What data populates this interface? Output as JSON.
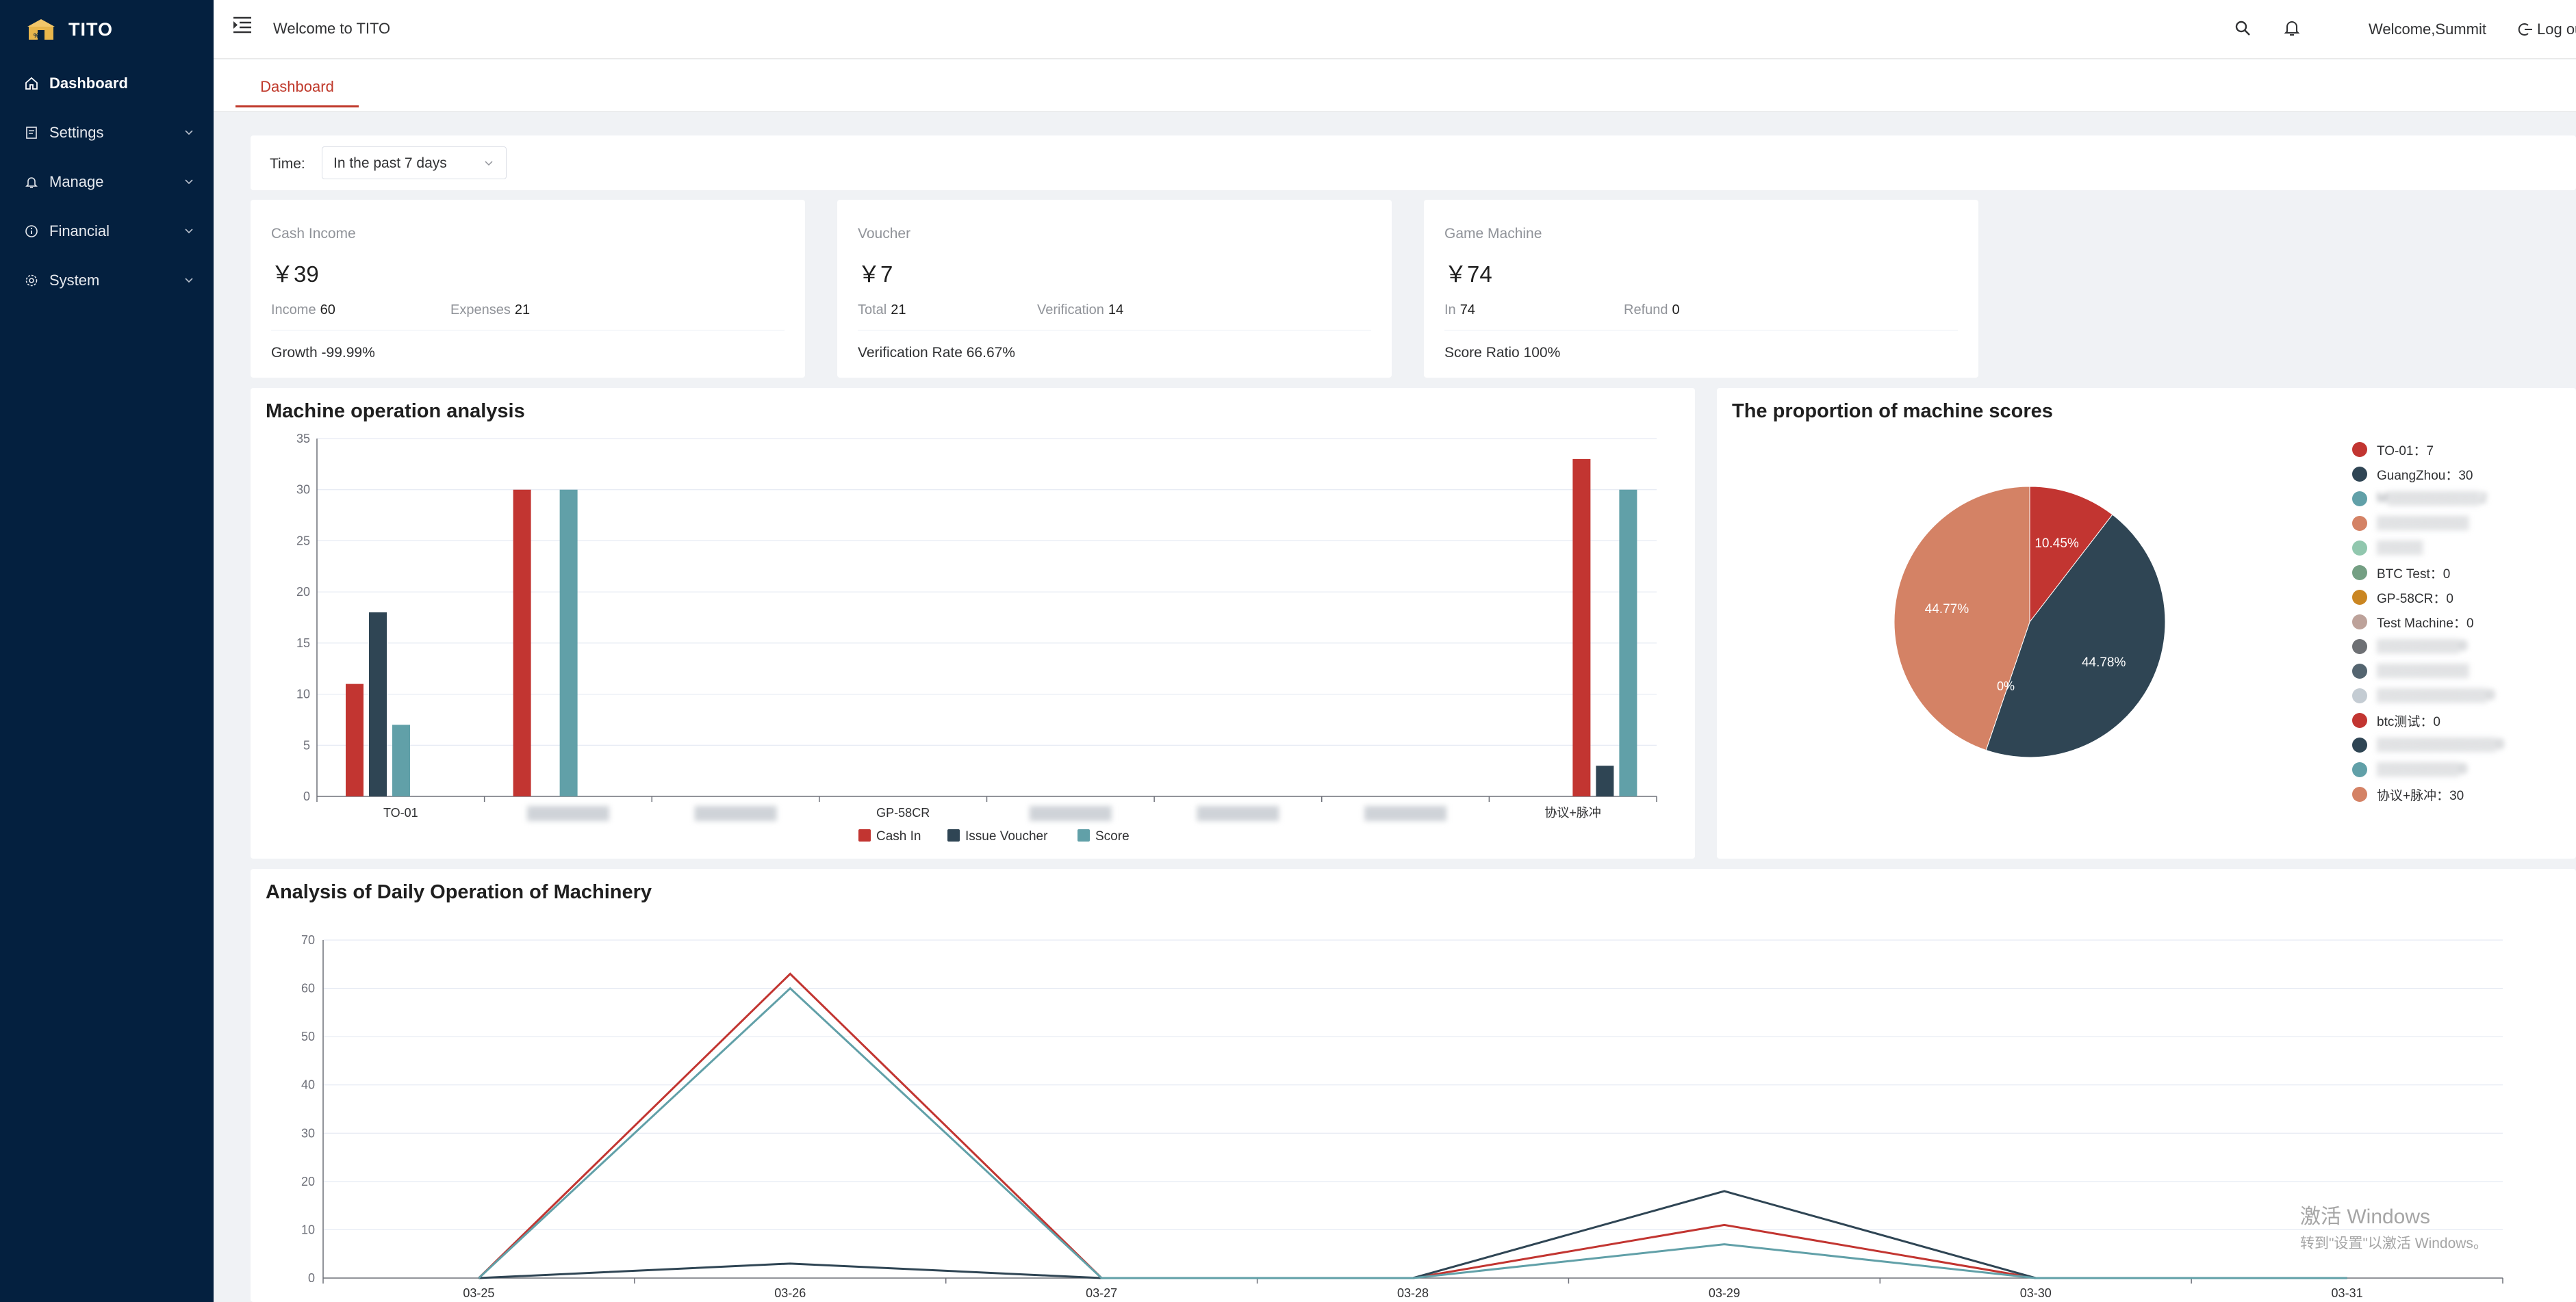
{
  "app": {
    "title": "TITO"
  },
  "colors": {
    "sidebar_bg": "#04203f",
    "accent": "#c0392b",
    "cash_in": "#c23531",
    "issue_voucher": "#2f4554",
    "score": "#61a0a8"
  },
  "sidebar": {
    "items": [
      {
        "label": "Dashboard",
        "icon": "home-icon",
        "active": true
      },
      {
        "label": "Settings",
        "icon": "settings-doc-icon",
        "expandable": true
      },
      {
        "label": "Manage",
        "icon": "bell-icon",
        "expandable": true
      },
      {
        "label": "Financial",
        "icon": "info-circle-icon",
        "expandable": true
      },
      {
        "label": "System",
        "icon": "gear-icon",
        "expandable": true
      }
    ]
  },
  "header": {
    "title": "Welcome to TITO",
    "user": "Welcome,Summit",
    "logout": "Log ou"
  },
  "tabs": [
    {
      "label": "Dashboard",
      "active": true
    }
  ],
  "filter": {
    "label": "Time:",
    "value": "In the past 7 days"
  },
  "cards": [
    {
      "title": "Cash Income",
      "amount": "￥39",
      "left_label": "Income",
      "left_value": "60",
      "right_label": "Expenses",
      "right_value": "21",
      "footer": "Growth -99.99%"
    },
    {
      "title": "Voucher",
      "amount": "￥7",
      "left_label": "Total",
      "left_value": "21",
      "right_label": "Verification",
      "right_value": "14",
      "footer": "Verification Rate 66.67%"
    },
    {
      "title": "Game Machine",
      "amount": "￥74",
      "left_label": "In",
      "left_value": "74",
      "right_label": "Refund",
      "right_value": "0",
      "footer": "Score Ratio 100%"
    }
  ],
  "panels": {
    "machine_operation": "Machine operation analysis",
    "machine_scores": "The proportion of machine scores",
    "daily_operation": "Analysis of Daily Operation of Machinery"
  },
  "chart_data": [
    {
      "type": "bar",
      "title": "Machine operation analysis",
      "categories": [
        "TO-01",
        "",
        "",
        "GP-58CR",
        "",
        "",
        "",
        "协议+脉冲"
      ],
      "ylim": [
        0,
        35
      ],
      "yticks": [
        0,
        5,
        10,
        15,
        20,
        25,
        30,
        35
      ],
      "series": [
        {
          "name": "Cash In",
          "values": [
            11,
            30,
            0,
            0,
            0,
            0,
            0,
            33
          ]
        },
        {
          "name": "Issue Voucher",
          "values": [
            18,
            0,
            0,
            0,
            0,
            0,
            0,
            3
          ]
        },
        {
          "name": "Score",
          "values": [
            7,
            30,
            0,
            0,
            0,
            0,
            0,
            30
          ]
        }
      ],
      "legend": "bottom-center",
      "grid": true
    },
    {
      "type": "pie",
      "title": "The proportion of machine scores",
      "slices": [
        {
          "name": "TO-01",
          "value": 7,
          "label": "10.45%",
          "color": "#c23531"
        },
        {
          "name": "GuangZhou",
          "value": 30,
          "label": "44.78%",
          "color": "#2f4554"
        },
        {
          "name": "协议+脉冲",
          "value": 30,
          "label": "44.77%",
          "color": "#d48265"
        }
      ],
      "zero_label": "0%",
      "legend": "right",
      "legend_items": [
        {
          "text": "TO-01：7",
          "color": "#c23531"
        },
        {
          "text": "GuangZhou：30",
          "color": "#2f4554"
        },
        {
          "text": "M▒▒▒▒▒▒▒▒▒▒2",
          "color": "#61a0a8",
          "obscured": true
        },
        {
          "text": "▒▒▒▒▒▒▒▒▒▒",
          "color": "#d48265",
          "obscured": true
        },
        {
          "text": "▒▒▒▒▒",
          "color": "#91c7ae",
          "obscured": true
        },
        {
          "text": "BTC Test：0",
          "color": "#749f83"
        },
        {
          "text": "GP-58CR：0",
          "color": "#ca8622"
        },
        {
          "text": "Test Machine：0",
          "color": "#bda29a"
        },
        {
          "text": "▒▒▒▒▒▒▒▒▒0",
          "color": "#6e7074",
          "obscured": true
        },
        {
          "text": "▒▒▒▒▒▒▒▒▒▒",
          "color": "#546570",
          "obscured": true
        },
        {
          "text": "▒▒▒▒▒▒▒▒▒▒▒▒0",
          "color": "#c4ccd3",
          "obscured": true
        },
        {
          "text": "btc测试：0",
          "color": "#c23531"
        },
        {
          "text": "▒▒▒▒▒▒▒▒▒▒▒▒▒0",
          "color": "#2f4554",
          "obscured": true
        },
        {
          "text": "▒▒▒▒▒▒▒▒▒0",
          "color": "#61a0a8",
          "obscured": true
        },
        {
          "text": "协议+脉冲：30",
          "color": "#d48265"
        }
      ]
    },
    {
      "type": "line",
      "title": "Analysis of Daily Operation of Machinery",
      "x": [
        "03-25",
        "03-26",
        "03-27",
        "03-28",
        "03-29",
        "03-30",
        "03-31"
      ],
      "ylim": [
        0,
        70
      ],
      "yticks": [
        0,
        10,
        20,
        30,
        40,
        50,
        60,
        70
      ],
      "series": [
        {
          "values": [
            0,
            63,
            0,
            0,
            11,
            0,
            0
          ],
          "color": "#c23531"
        },
        {
          "values": [
            0,
            3,
            0,
            0,
            18,
            0,
            0
          ],
          "color": "#2f4554"
        },
        {
          "values": [
            0,
            60,
            0,
            0,
            7,
            0,
            0
          ],
          "color": "#61a0a8"
        }
      ],
      "grid": true
    }
  ],
  "watermark": {
    "line1": "激活 Windows",
    "line2": "转到\"设置\"以激活 Windows。"
  }
}
